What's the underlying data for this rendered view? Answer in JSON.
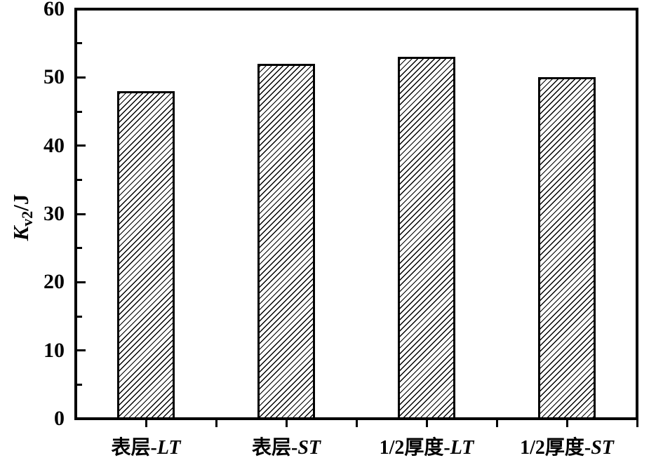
{
  "figure": {
    "background": "#ffffff"
  },
  "chart_data": {
    "type": "bar",
    "title": "",
    "categories": [
      "表层-LT",
      "表层-ST",
      "1/2厚度-LT",
      "1/2厚度-ST"
    ],
    "categories_rich": [
      {
        "prefix": "表层-",
        "italic": "LT"
      },
      {
        "prefix": "表层-",
        "italic": "ST"
      },
      {
        "prefix": "1/2厚度-",
        "italic": "LT"
      },
      {
        "prefix": "1/2厚度-",
        "italic": "ST"
      }
    ],
    "values": [
      48,
      52,
      53,
      50
    ],
    "xlabel": "",
    "ylabel": "Kv2/J",
    "ylabel_main": "K",
    "ylabel_sub": "v2",
    "ylabel_unit": "/J",
    "ylim": [
      0,
      60
    ],
    "yticks_major": [
      0,
      10,
      20,
      30,
      40,
      50,
      60
    ],
    "yticks_minor": [
      5,
      15,
      25,
      35,
      45,
      55
    ],
    "grid": false,
    "legend": "none",
    "bar_fill": "diagonal-hatch",
    "bar_face_color": "#ffffff",
    "bar_edge_color": "#000000",
    "axis_color": "#000000",
    "text_color": "#000000"
  }
}
